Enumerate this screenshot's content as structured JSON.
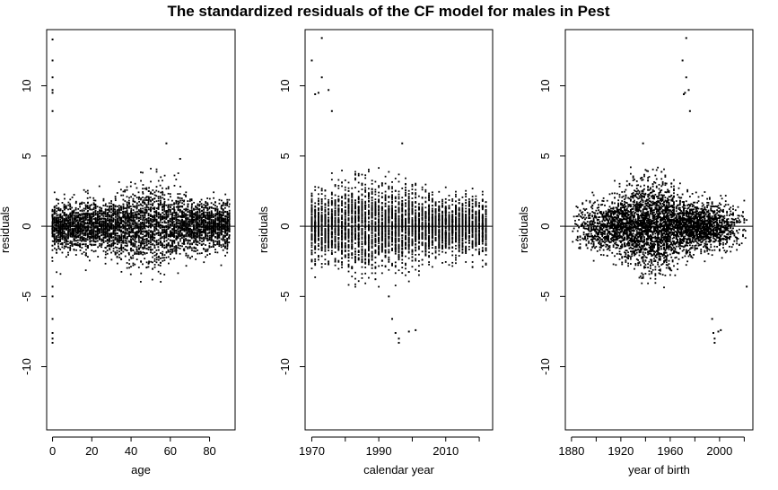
{
  "title": "The standardized residuals of the CF model for males in Pest",
  "chart_data": [
    {
      "type": "scatter",
      "xlabel": "age",
      "ylabel": "residuals",
      "xlim": [
        -3,
        93
      ],
      "ylim": [
        -14.5,
        14
      ],
      "xticks": [
        0,
        20,
        40,
        60,
        80
      ],
      "yticks": [
        -10,
        -5,
        0,
        5,
        10
      ],
      "hline": 0,
      "outliers": [
        [
          0,
          13.3
        ],
        [
          0,
          11.8
        ],
        [
          0,
          10.6
        ],
        [
          0,
          9.7
        ],
        [
          0,
          9.5
        ],
        [
          0,
          8.2
        ],
        [
          0,
          -6.6
        ],
        [
          0,
          -7.6
        ],
        [
          0,
          -8.0
        ],
        [
          0,
          -8.3
        ],
        [
          0,
          -5.0
        ],
        [
          0,
          -4.3
        ],
        [
          58,
          5.9
        ],
        [
          65,
          4.8
        ]
      ]
    },
    {
      "type": "scatter",
      "xlabel": "calendar year",
      "ylabel": "residuals",
      "xlim": [
        1968,
        2024
      ],
      "ylim": [
        -14.5,
        14
      ],
      "xticks": [
        1970,
        1990,
        2010
      ],
      "minor_xticks": [
        1980,
        2000,
        2020
      ],
      "yticks": [
        -10,
        -5,
        0,
        5,
        10
      ],
      "hline": 0,
      "outliers": [
        [
          1970,
          11.8
        ],
        [
          1971,
          9.4
        ],
        [
          1972,
          9.5
        ],
        [
          1973,
          13.4
        ],
        [
          1975,
          9.7
        ],
        [
          1976,
          8.2
        ],
        [
          1973,
          10.6
        ],
        [
          1994,
          -6.6
        ],
        [
          1995,
          -7.6
        ],
        [
          1996,
          -8.0
        ],
        [
          1996,
          -8.3
        ],
        [
          1999,
          -7.5
        ],
        [
          2001,
          -7.4
        ],
        [
          1997,
          5.9
        ],
        [
          1993,
          -5.0
        ]
      ]
    },
    {
      "type": "scatter",
      "xlabel": "year of birth",
      "ylabel": "residuals",
      "xlim": [
        1875,
        2027
      ],
      "ylim": [
        -14.5,
        14
      ],
      "xticks": [
        1880,
        1920,
        1960,
        2000
      ],
      "minor_xticks": [
        1900,
        1940,
        1980,
        2020
      ],
      "yticks": [
        -10,
        -5,
        0,
        5,
        10
      ],
      "hline": 0,
      "outliers": [
        [
          1970,
          11.8
        ],
        [
          1971,
          9.4
        ],
        [
          1972,
          9.5
        ],
        [
          1973,
          13.4
        ],
        [
          1975,
          9.7
        ],
        [
          1976,
          8.2
        ],
        [
          1973,
          10.6
        ],
        [
          1994,
          -6.6
        ],
        [
          1995,
          -7.6
        ],
        [
          1996,
          -8.0
        ],
        [
          1996,
          -8.3
        ],
        [
          1999,
          -7.5
        ],
        [
          2001,
          -7.4
        ],
        [
          1938,
          5.9
        ],
        [
          2022,
          -4.3
        ]
      ]
    }
  ]
}
